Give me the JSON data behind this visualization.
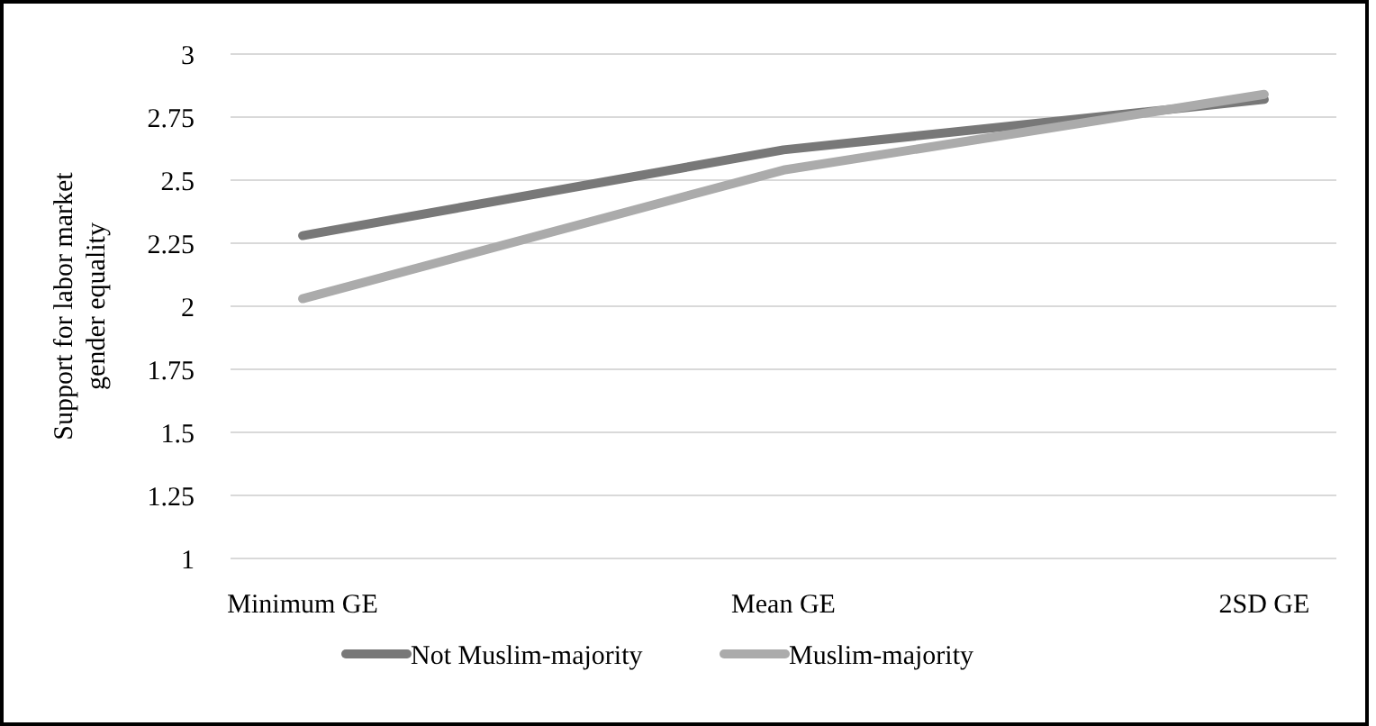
{
  "chart_data": {
    "type": "line",
    "ylabel": "Support for labor market gender equality",
    "categories": [
      "Minimum GE",
      "Mean GE",
      "2SD GE"
    ],
    "ylim": [
      1,
      3
    ],
    "yticks": [
      1,
      1.25,
      1.5,
      1.75,
      2,
      2.25,
      2.5,
      2.75,
      3
    ],
    "grid": "y",
    "legend": "bottom",
    "marker": "none",
    "line_style": "solid",
    "series": [
      {
        "name": "Not Muslim-majority",
        "color": "#787878",
        "values": [
          2.28,
          2.62,
          2.82
        ]
      },
      {
        "name": "Muslim-majority",
        "color": "#ababab",
        "values": [
          2.03,
          2.54,
          2.84
        ]
      }
    ]
  }
}
